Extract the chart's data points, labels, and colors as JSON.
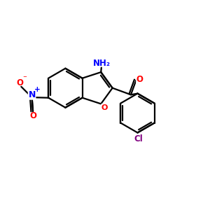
{
  "background_color": "#ffffff",
  "bond_color": "#000000",
  "bond_width": 1.6,
  "atom_colors": {
    "O": "#ff0000",
    "N_nitro": "#0000ff",
    "O_nitro": "#ff0000",
    "N_amino": "#0000ff",
    "Cl": "#800080"
  },
  "figsize": [
    3.0,
    3.0
  ],
  "dpi": 100
}
